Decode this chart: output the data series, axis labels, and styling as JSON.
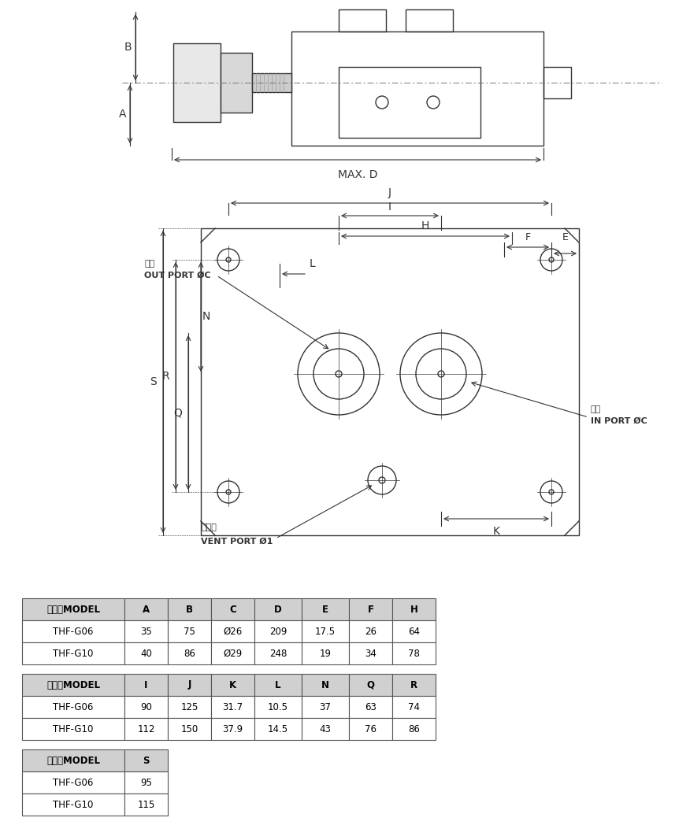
{
  "table1_headers": [
    "型式　MODEL",
    "A",
    "B",
    "C",
    "D",
    "E",
    "F",
    "H"
  ],
  "table1_rows": [
    [
      "THF-G06",
      "35",
      "75",
      "Ø26",
      "209",
      "17.5",
      "26",
      "64"
    ],
    [
      "THF-G10",
      "40",
      "86",
      "Ø29",
      "248",
      "19",
      "34",
      "78"
    ]
  ],
  "table2_headers": [
    "型式　MODEL",
    "I",
    "J",
    "K",
    "L",
    "N",
    "Q",
    "R"
  ],
  "table2_rows": [
    [
      "THF-G06",
      "90",
      "125",
      "31.7",
      "10.5",
      "37",
      "63",
      "74"
    ],
    [
      "THF-G10",
      "112",
      "150",
      "37.9",
      "14.5",
      "43",
      "76",
      "86"
    ]
  ],
  "table3_headers": [
    "型式　MODEL",
    "S"
  ],
  "table3_rows": [
    [
      "THF-G06",
      "95"
    ],
    [
      "THF-G10",
      "115"
    ]
  ],
  "header_bg": "#d0d0d0",
  "row_bg": "#ffffff",
  "border_color": "#555555",
  "text_color": "#000000",
  "line_color": "#333333",
  "dash_color": "#555555",
  "light_gray": "#bbbbbb"
}
